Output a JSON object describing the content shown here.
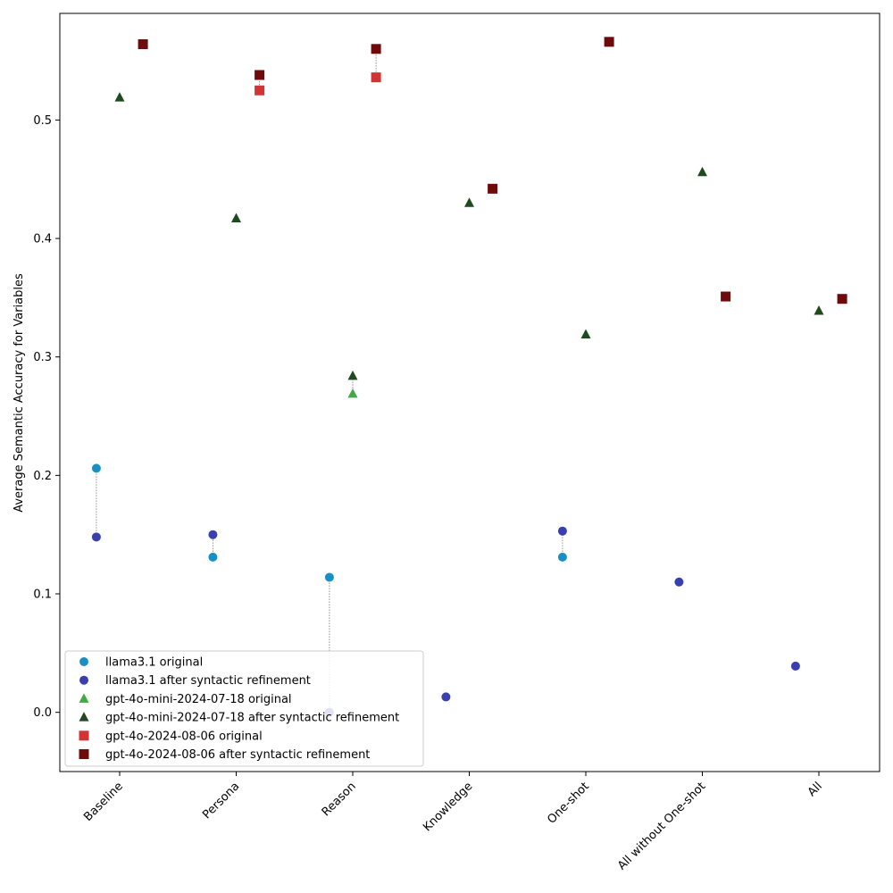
{
  "chart_data": {
    "type": "scatter",
    "title": "",
    "xlabel": "",
    "ylabel": "Average Semantic Accuracy for Variables",
    "categories": [
      "Baseline",
      "Persona",
      "Reason",
      "Knowledge",
      "One-shot",
      "All without One-shot",
      "All"
    ],
    "ylim": [
      -0.05,
      0.59
    ],
    "yticks": [
      0.0,
      0.1,
      0.2,
      0.3,
      0.4,
      0.5
    ],
    "ytick_labels": [
      "0.0",
      "0.1",
      "0.2",
      "0.3",
      "0.4",
      "0.5"
    ],
    "grid": false,
    "legend_position": "lower-left",
    "series": [
      {
        "name": "llama3.1 original",
        "marker": "circle",
        "color": "#1a8fc4",
        "offset": -0.2,
        "values": [
          0.206,
          0.131,
          0.114,
          null,
          0.131,
          null,
          null
        ]
      },
      {
        "name": "llama3.1 after syntactic refinement",
        "marker": "circle",
        "color": "#3a3fb0",
        "offset": -0.2,
        "values": [
          0.148,
          0.15,
          0.0,
          0.013,
          0.153,
          0.11,
          0.039
        ]
      },
      {
        "name": "gpt-4o-mini-2024-07-18 original",
        "marker": "triangle",
        "color": "#43a847",
        "offset": 0.0,
        "values": [
          null,
          null,
          0.269,
          null,
          null,
          null,
          null
        ]
      },
      {
        "name": "gpt-4o-mini-2024-07-18 after syntactic refinement",
        "marker": "triangle",
        "color": "#1e4a1e",
        "offset": 0.0,
        "values": [
          0.519,
          0.417,
          0.284,
          0.43,
          0.319,
          0.456,
          0.339
        ]
      },
      {
        "name": "gpt-4o-2024-08-06 original",
        "marker": "square",
        "color": "#d03434",
        "offset": 0.2,
        "values": [
          null,
          0.525,
          0.536,
          null,
          null,
          null,
          null
        ]
      },
      {
        "name": "gpt-4o-2024-08-06 after syntactic refinement",
        "marker": "square",
        "color": "#6e0a0a",
        "offset": 0.2,
        "values": [
          0.564,
          0.538,
          0.56,
          0.442,
          0.566,
          0.351,
          0.349
        ]
      }
    ],
    "connectors": [
      {
        "from_series": 0,
        "to_series": 1
      },
      {
        "from_series": 2,
        "to_series": 3
      },
      {
        "from_series": 4,
        "to_series": 5
      }
    ]
  }
}
